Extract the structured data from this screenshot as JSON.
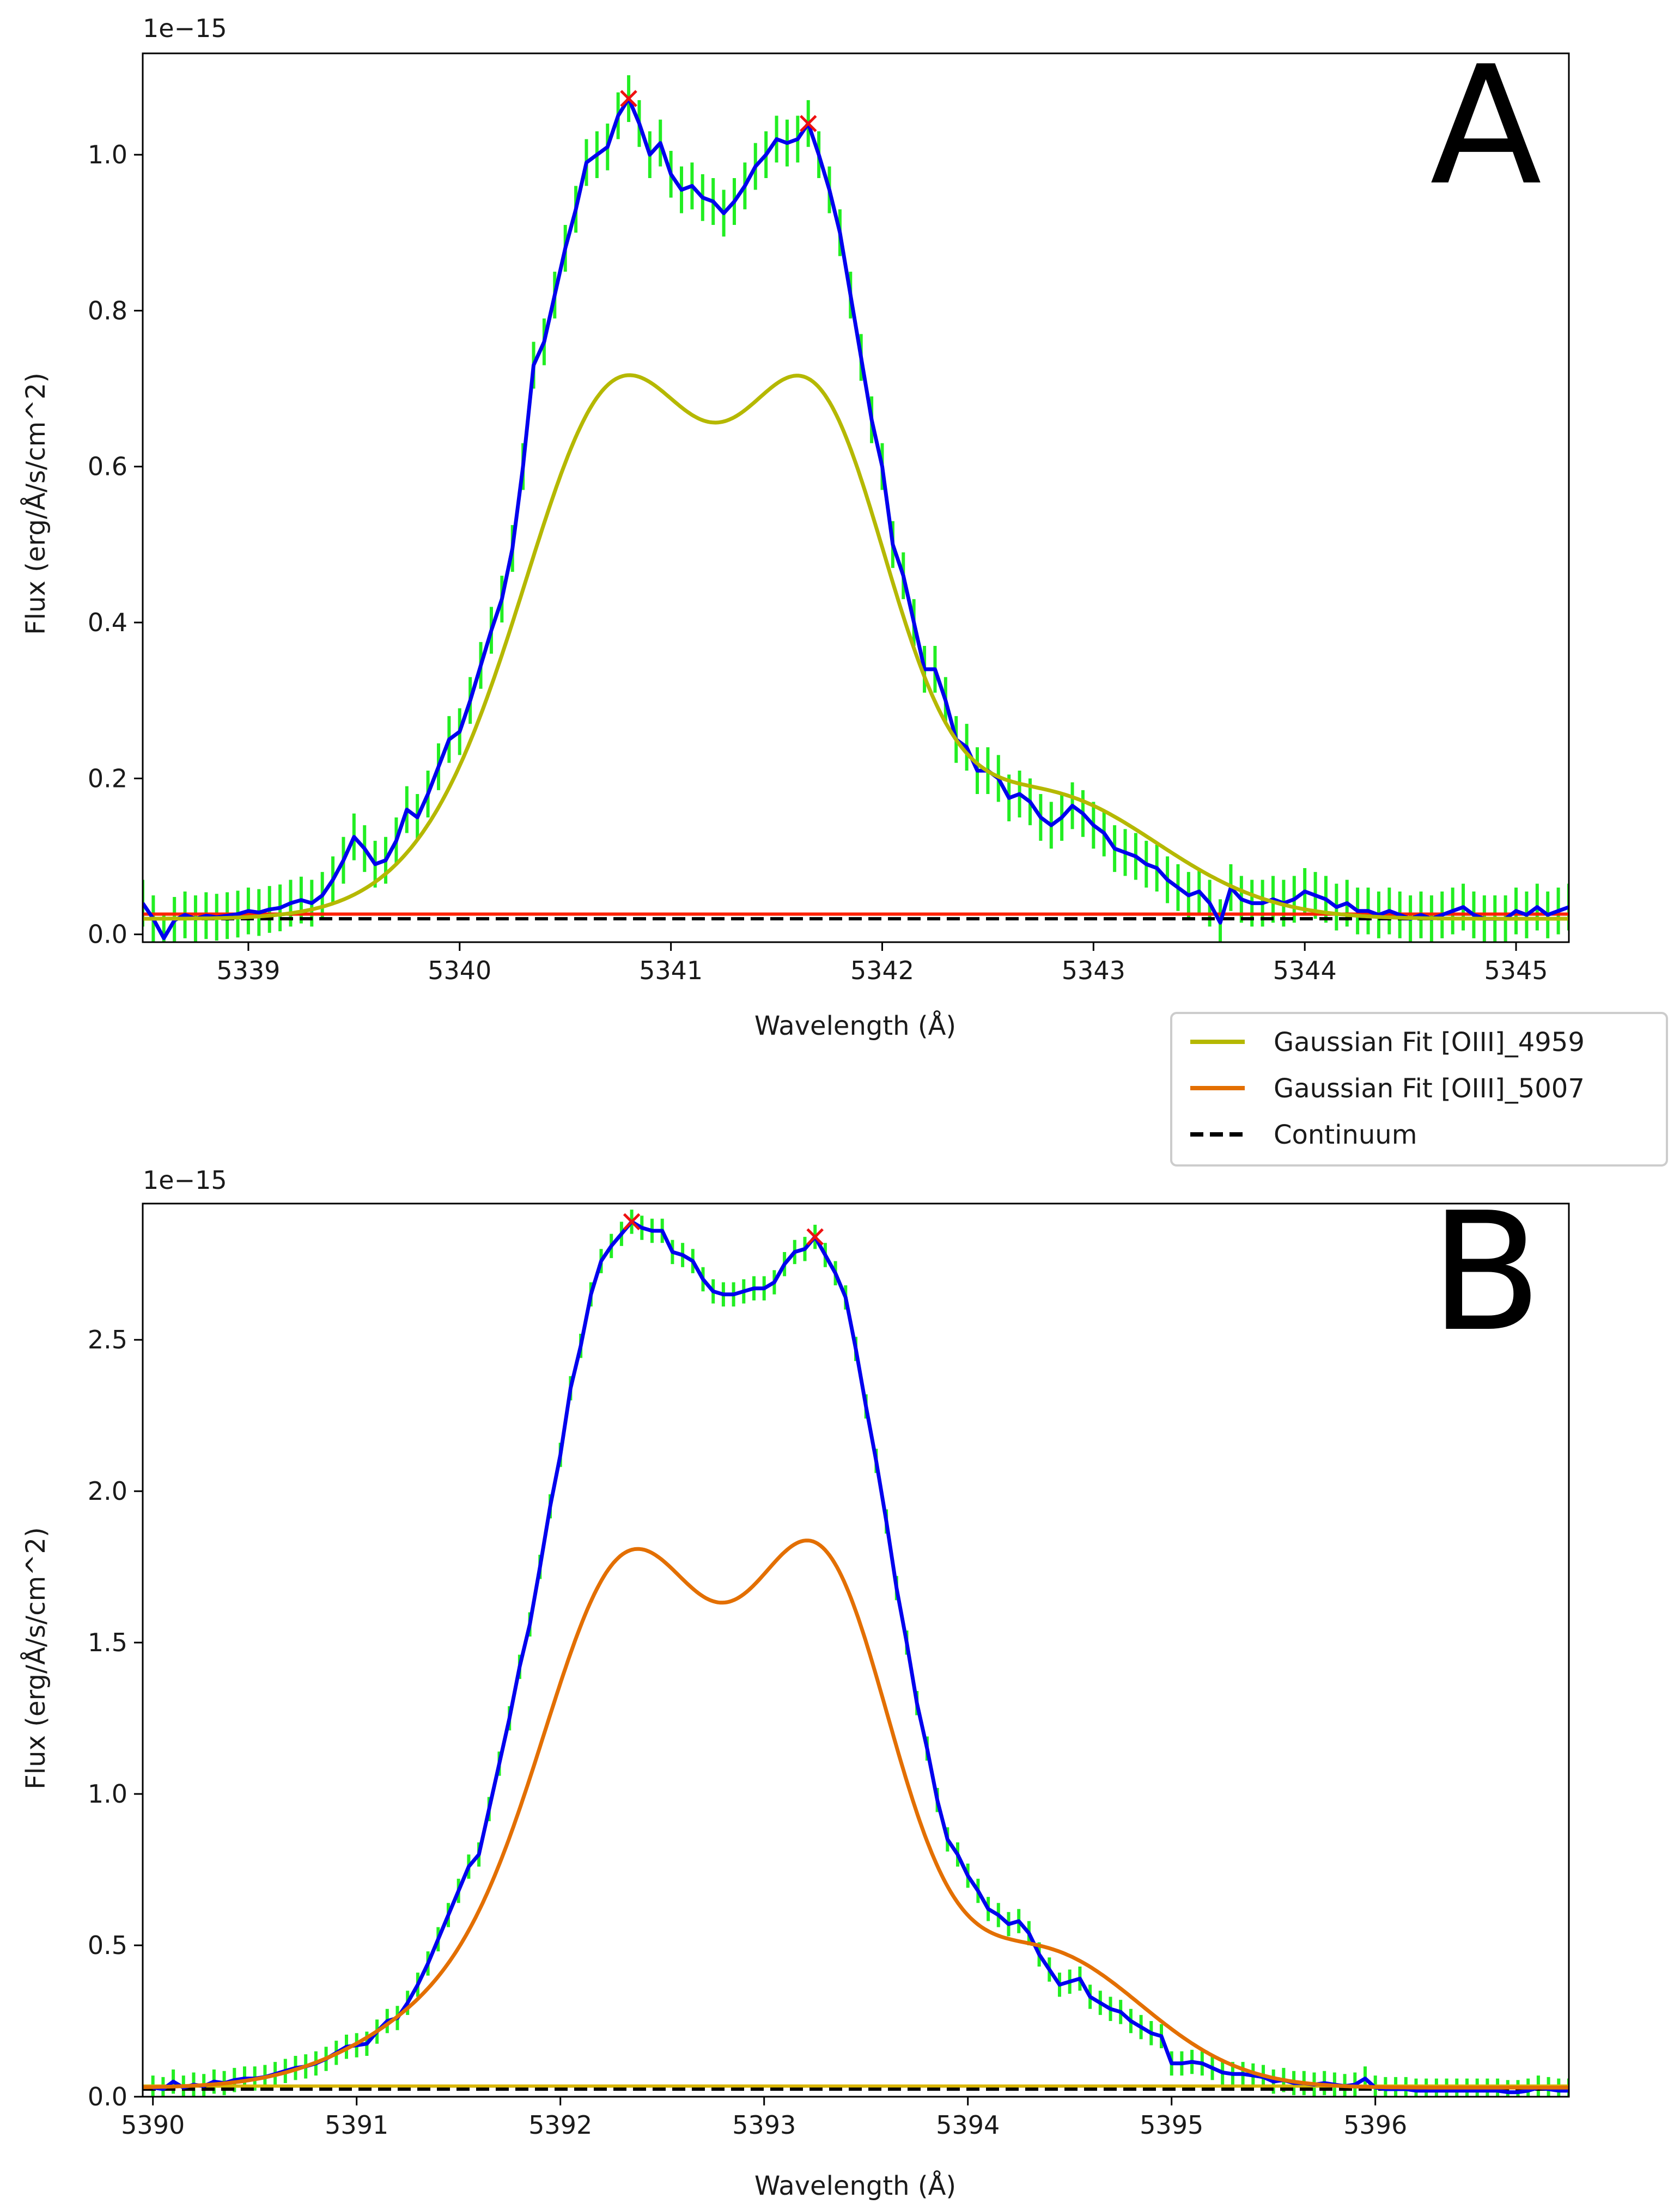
{
  "legend": [
    {
      "label": "Gaussian Fit [OIII]_4959",
      "color": "#b5b800",
      "style": "solid"
    },
    {
      "label": "Gaussian Fit [OIII]_5007",
      "color": "#e36f00",
      "style": "solid"
    },
    {
      "label": "Continuum",
      "color": "#000000",
      "style": "dashed"
    }
  ],
  "chart_data": [
    {
      "type": "line",
      "panel_letter": "A",
      "title": "",
      "xlabel": "Wavelength (Å)",
      "ylabel": "Flux (erg/Å/s/cm^2)",
      "offset_text": "1e−15",
      "xlim": [
        5338.5,
        5345.25
      ],
      "ylim": [
        -0.01,
        1.13
      ],
      "xticks": [
        5339,
        5340,
        5341,
        5342,
        5343,
        5344,
        5345
      ],
      "yticks": [
        0.0,
        0.2,
        0.4,
        0.6,
        0.8,
        1.0
      ],
      "ytick_labels": [
        "0.0",
        "0.2",
        "0.4",
        "0.6",
        "0.8",
        "1.0"
      ],
      "xtick_labels": [
        "5339",
        "5340",
        "5341",
        "5342",
        "5343",
        "5344",
        "5345"
      ],
      "grid": false,
      "continuum_level": 0.02,
      "horizontal_line": {
        "y": 0.026,
        "color": "#ff2200"
      },
      "fit_color": "#b5b800",
      "data_color": "#0000ee",
      "error_color": "#22ee22",
      "marker_color": "#ee1111",
      "peaks": [
        [
          5340.8,
          1.072
        ],
        [
          5341.65,
          1.04
        ]
      ],
      "fit_components": [
        {
          "amp": 0.62,
          "mu": 5340.78,
          "sigma": 0.42
        },
        {
          "amp": 0.6,
          "mu": 5341.68,
          "sigma": 0.36
        },
        {
          "amp": 0.16,
          "mu": 5342.75,
          "sigma": 0.55
        },
        {
          "amp": 0.1,
          "mu": 5340.25,
          "sigma": 0.45
        }
      ],
      "fit_baseline": 0.02,
      "observed": [
        [
          5338.5,
          0.04
        ],
        [
          5338.55,
          0.02
        ],
        [
          5338.6,
          -0.005
        ],
        [
          5338.65,
          0.018
        ],
        [
          5338.7,
          0.025
        ],
        [
          5338.75,
          0.02
        ],
        [
          5338.8,
          0.024
        ],
        [
          5338.85,
          0.022
        ],
        [
          5338.9,
          0.024
        ],
        [
          5338.95,
          0.026
        ],
        [
          5339.0,
          0.03
        ],
        [
          5339.05,
          0.028
        ],
        [
          5339.1,
          0.032
        ],
        [
          5339.15,
          0.034
        ],
        [
          5339.2,
          0.04
        ],
        [
          5339.25,
          0.044
        ],
        [
          5339.3,
          0.04
        ],
        [
          5339.35,
          0.05
        ],
        [
          5339.4,
          0.07
        ],
        [
          5339.45,
          0.095
        ],
        [
          5339.5,
          0.125
        ],
        [
          5339.55,
          0.11
        ],
        [
          5339.6,
          0.09
        ],
        [
          5339.65,
          0.095
        ],
        [
          5339.7,
          0.12
        ],
        [
          5339.75,
          0.16
        ],
        [
          5339.8,
          0.15
        ],
        [
          5339.85,
          0.18
        ],
        [
          5339.9,
          0.215
        ],
        [
          5339.95,
          0.25
        ],
        [
          5340.0,
          0.26
        ],
        [
          5340.05,
          0.3
        ],
        [
          5340.1,
          0.345
        ],
        [
          5340.15,
          0.39
        ],
        [
          5340.2,
          0.43
        ],
        [
          5340.25,
          0.495
        ],
        [
          5340.3,
          0.6
        ],
        [
          5340.35,
          0.73
        ],
        [
          5340.4,
          0.76
        ],
        [
          5340.45,
          0.82
        ],
        [
          5340.5,
          0.88
        ],
        [
          5340.55,
          0.93
        ],
        [
          5340.6,
          0.99
        ],
        [
          5340.65,
          1.0
        ],
        [
          5340.7,
          1.01
        ],
        [
          5340.75,
          1.05
        ],
        [
          5340.8,
          1.072
        ],
        [
          5340.85,
          1.04
        ],
        [
          5340.9,
          1.0
        ],
        [
          5340.95,
          1.015
        ],
        [
          5341.0,
          0.975
        ],
        [
          5341.05,
          0.955
        ],
        [
          5341.1,
          0.96
        ],
        [
          5341.15,
          0.945
        ],
        [
          5341.2,
          0.94
        ],
        [
          5341.25,
          0.925
        ],
        [
          5341.3,
          0.94
        ],
        [
          5341.35,
          0.96
        ],
        [
          5341.4,
          0.985
        ],
        [
          5341.45,
          1.0
        ],
        [
          5341.5,
          1.02
        ],
        [
          5341.55,
          1.015
        ],
        [
          5341.6,
          1.02
        ],
        [
          5341.65,
          1.04
        ],
        [
          5341.7,
          1.0
        ],
        [
          5341.75,
          0.955
        ],
        [
          5341.8,
          0.9
        ],
        [
          5341.85,
          0.82
        ],
        [
          5341.9,
          0.74
        ],
        [
          5341.95,
          0.66
        ],
        [
          5342.0,
          0.6
        ],
        [
          5342.05,
          0.5
        ],
        [
          5342.1,
          0.46
        ],
        [
          5342.15,
          0.4
        ],
        [
          5342.2,
          0.34
        ],
        [
          5342.25,
          0.34
        ],
        [
          5342.3,
          0.3
        ],
        [
          5342.35,
          0.25
        ],
        [
          5342.4,
          0.24
        ],
        [
          5342.45,
          0.21
        ],
        [
          5342.5,
          0.21
        ],
        [
          5342.55,
          0.2
        ],
        [
          5342.6,
          0.175
        ],
        [
          5342.65,
          0.18
        ],
        [
          5342.7,
          0.17
        ],
        [
          5342.75,
          0.15
        ],
        [
          5342.8,
          0.14
        ],
        [
          5342.85,
          0.15
        ],
        [
          5342.9,
          0.165
        ],
        [
          5342.95,
          0.155
        ],
        [
          5343.0,
          0.14
        ],
        [
          5343.05,
          0.13
        ],
        [
          5343.1,
          0.11
        ],
        [
          5343.15,
          0.105
        ],
        [
          5343.2,
          0.1
        ],
        [
          5343.25,
          0.09
        ],
        [
          5343.3,
          0.085
        ],
        [
          5343.35,
          0.07
        ],
        [
          5343.4,
          0.06
        ],
        [
          5343.45,
          0.05
        ],
        [
          5343.5,
          0.055
        ],
        [
          5343.55,
          0.04
        ],
        [
          5343.6,
          0.015
        ],
        [
          5343.65,
          0.06
        ],
        [
          5343.7,
          0.045
        ],
        [
          5343.75,
          0.04
        ],
        [
          5343.8,
          0.04
        ],
        [
          5343.85,
          0.045
        ],
        [
          5343.9,
          0.04
        ],
        [
          5343.95,
          0.045
        ],
        [
          5344.0,
          0.055
        ],
        [
          5344.05,
          0.05
        ],
        [
          5344.1,
          0.045
        ],
        [
          5344.15,
          0.035
        ],
        [
          5344.2,
          0.04
        ],
        [
          5344.25,
          0.03
        ],
        [
          5344.3,
          0.03
        ],
        [
          5344.35,
          0.025
        ],
        [
          5344.4,
          0.03
        ],
        [
          5344.45,
          0.025
        ],
        [
          5344.5,
          0.02
        ],
        [
          5344.55,
          0.025
        ],
        [
          5344.6,
          0.02
        ],
        [
          5344.65,
          0.025
        ],
        [
          5344.7,
          0.03
        ],
        [
          5344.75,
          0.035
        ],
        [
          5344.8,
          0.025
        ],
        [
          5344.85,
          0.02
        ],
        [
          5344.9,
          0.02
        ],
        [
          5344.95,
          0.02
        ],
        [
          5345.0,
          0.03
        ],
        [
          5345.05,
          0.025
        ],
        [
          5345.1,
          0.035
        ],
        [
          5345.15,
          0.025
        ],
        [
          5345.2,
          0.03
        ],
        [
          5345.25,
          0.035
        ]
      ],
      "error_bar_halfwidth": 0.03
    },
    {
      "type": "line",
      "panel_letter": "B",
      "title": "",
      "xlabel": "Wavelength (Å)",
      "ylabel": "Flux (erg/Å/s/cm^2)",
      "offset_text": "1e−15",
      "xlim": [
        5389.95,
        5396.95
      ],
      "ylim": [
        0.0,
        2.95
      ],
      "xticks": [
        5390,
        5391,
        5392,
        5393,
        5394,
        5395,
        5396
      ],
      "yticks": [
        0.0,
        0.5,
        1.0,
        1.5,
        2.0,
        2.5
      ],
      "ytick_labels": [
        "0.0",
        "0.5",
        "1.0",
        "1.5",
        "2.0",
        "2.5"
      ],
      "xtick_labels": [
        "5390",
        "5391",
        "5392",
        "5393",
        "5394",
        "5395",
        "5396"
      ],
      "grid": false,
      "continuum_level": 0.025,
      "horizontal_line": {
        "y": 0.035,
        "color": "#d8b400"
      },
      "fit_color": "#e36f00",
      "data_color": "#0000ee",
      "error_color": "#22ee22",
      "marker_color": "#ee1111",
      "peaks": [
        [
          5392.35,
          2.89
        ],
        [
          5393.25,
          2.84
        ]
      ],
      "fit_components": [
        {
          "amp": 1.65,
          "mu": 5392.35,
          "sigma": 0.42
        },
        {
          "amp": 1.6,
          "mu": 5393.28,
          "sigma": 0.36
        },
        {
          "amp": 0.45,
          "mu": 5394.35,
          "sigma": 0.5
        },
        {
          "amp": 0.25,
          "mu": 5391.55,
          "sigma": 0.5
        }
      ],
      "fit_baseline": 0.03,
      "observed": [
        [
          5390.0,
          0.03
        ],
        [
          5390.05,
          0.025
        ],
        [
          5390.1,
          0.05
        ],
        [
          5390.15,
          0.03
        ],
        [
          5390.2,
          0.04
        ],
        [
          5390.25,
          0.035
        ],
        [
          5390.3,
          0.05
        ],
        [
          5390.35,
          0.045
        ],
        [
          5390.4,
          0.055
        ],
        [
          5390.45,
          0.06
        ],
        [
          5390.5,
          0.06
        ],
        [
          5390.55,
          0.065
        ],
        [
          5390.6,
          0.075
        ],
        [
          5390.65,
          0.085
        ],
        [
          5390.7,
          0.095
        ],
        [
          5390.75,
          0.1
        ],
        [
          5390.8,
          0.11
        ],
        [
          5390.85,
          0.125
        ],
        [
          5390.9,
          0.145
        ],
        [
          5390.95,
          0.165
        ],
        [
          5391.0,
          0.17
        ],
        [
          5391.05,
          0.175
        ],
        [
          5391.1,
          0.215
        ],
        [
          5391.15,
          0.25
        ],
        [
          5391.2,
          0.26
        ],
        [
          5391.25,
          0.31
        ],
        [
          5391.3,
          0.37
        ],
        [
          5391.35,
          0.44
        ],
        [
          5391.4,
          0.52
        ],
        [
          5391.45,
          0.6
        ],
        [
          5391.5,
          0.68
        ],
        [
          5391.55,
          0.76
        ],
        [
          5391.6,
          0.8
        ],
        [
          5391.65,
          0.95
        ],
        [
          5391.7,
          1.1
        ],
        [
          5391.75,
          1.25
        ],
        [
          5391.8,
          1.42
        ],
        [
          5391.85,
          1.56
        ],
        [
          5391.9,
          1.75
        ],
        [
          5391.95,
          1.95
        ],
        [
          5392.0,
          2.12
        ],
        [
          5392.05,
          2.34
        ],
        [
          5392.1,
          2.48
        ],
        [
          5392.15,
          2.65
        ],
        [
          5392.2,
          2.76
        ],
        [
          5392.25,
          2.81
        ],
        [
          5392.3,
          2.85
        ],
        [
          5392.35,
          2.89
        ],
        [
          5392.4,
          2.87
        ],
        [
          5392.45,
          2.86
        ],
        [
          5392.5,
          2.86
        ],
        [
          5392.55,
          2.79
        ],
        [
          5392.6,
          2.78
        ],
        [
          5392.65,
          2.76
        ],
        [
          5392.7,
          2.7
        ],
        [
          5392.75,
          2.66
        ],
        [
          5392.8,
          2.65
        ],
        [
          5392.85,
          2.65
        ],
        [
          5392.9,
          2.66
        ],
        [
          5392.95,
          2.67
        ],
        [
          5393.0,
          2.67
        ],
        [
          5393.05,
          2.69
        ],
        [
          5393.1,
          2.75
        ],
        [
          5393.15,
          2.79
        ],
        [
          5393.2,
          2.8
        ],
        [
          5393.25,
          2.84
        ],
        [
          5393.3,
          2.78
        ],
        [
          5393.35,
          2.72
        ],
        [
          5393.4,
          2.64
        ],
        [
          5393.45,
          2.47
        ],
        [
          5393.5,
          2.28
        ],
        [
          5393.55,
          2.1
        ],
        [
          5393.6,
          1.9
        ],
        [
          5393.65,
          1.68
        ],
        [
          5393.7,
          1.5
        ],
        [
          5393.75,
          1.3
        ],
        [
          5393.8,
          1.15
        ],
        [
          5393.85,
          0.98
        ],
        [
          5393.9,
          0.85
        ],
        [
          5393.95,
          0.8
        ],
        [
          5394.0,
          0.73
        ],
        [
          5394.05,
          0.68
        ],
        [
          5394.1,
          0.62
        ],
        [
          5394.15,
          0.6
        ],
        [
          5394.2,
          0.57
        ],
        [
          5394.25,
          0.58
        ],
        [
          5394.3,
          0.54
        ],
        [
          5394.35,
          0.47
        ],
        [
          5394.4,
          0.42
        ],
        [
          5394.45,
          0.37
        ],
        [
          5394.5,
          0.38
        ],
        [
          5394.55,
          0.39
        ],
        [
          5394.6,
          0.33
        ],
        [
          5394.65,
          0.31
        ],
        [
          5394.7,
          0.29
        ],
        [
          5394.75,
          0.28
        ],
        [
          5394.8,
          0.25
        ],
        [
          5394.85,
          0.23
        ],
        [
          5394.9,
          0.21
        ],
        [
          5394.95,
          0.2
        ],
        [
          5395.0,
          0.11
        ],
        [
          5395.05,
          0.11
        ],
        [
          5395.1,
          0.115
        ],
        [
          5395.15,
          0.11
        ],
        [
          5395.2,
          0.095
        ],
        [
          5395.25,
          0.08
        ],
        [
          5395.3,
          0.075
        ],
        [
          5395.35,
          0.075
        ],
        [
          5395.4,
          0.07
        ],
        [
          5395.45,
          0.065
        ],
        [
          5395.5,
          0.05
        ],
        [
          5395.55,
          0.055
        ],
        [
          5395.6,
          0.045
        ],
        [
          5395.65,
          0.045
        ],
        [
          5395.7,
          0.04
        ],
        [
          5395.75,
          0.045
        ],
        [
          5395.8,
          0.04
        ],
        [
          5395.85,
          0.035
        ],
        [
          5395.9,
          0.04
        ],
        [
          5395.95,
          0.06
        ],
        [
          5396.0,
          0.03
        ],
        [
          5396.05,
          0.025
        ],
        [
          5396.1,
          0.025
        ],
        [
          5396.15,
          0.025
        ],
        [
          5396.2,
          0.02
        ],
        [
          5396.25,
          0.02
        ],
        [
          5396.3,
          0.02
        ],
        [
          5396.35,
          0.02
        ],
        [
          5396.4,
          0.02
        ],
        [
          5396.45,
          0.02
        ],
        [
          5396.5,
          0.02
        ],
        [
          5396.55,
          0.02
        ],
        [
          5396.6,
          0.02
        ],
        [
          5396.65,
          0.015
        ],
        [
          5396.7,
          0.015
        ],
        [
          5396.75,
          0.02
        ],
        [
          5396.8,
          0.03
        ],
        [
          5396.85,
          0.025
        ],
        [
          5396.9,
          0.02
        ],
        [
          5396.95,
          0.02
        ]
      ],
      "error_bar_halfwidth": 0.04
    }
  ]
}
